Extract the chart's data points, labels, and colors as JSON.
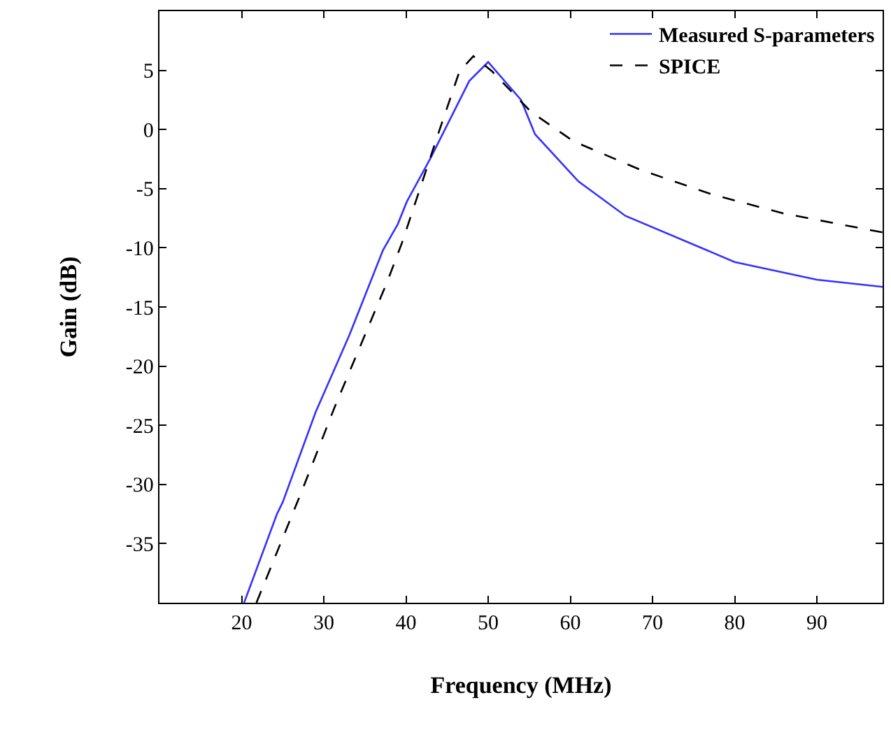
{
  "chart_data": {
    "type": "line",
    "xlabel": "Frequency (MHz)",
    "ylabel": "Gain (dB)",
    "xlim": [
      10,
      98
    ],
    "xticks": [
      20,
      30,
      40,
      50,
      60,
      70,
      80,
      90
    ],
    "ylim": [
      -40,
      10
    ],
    "yticks": [
      5,
      0,
      -5,
      -10,
      -15,
      -20,
      -25,
      -30,
      -35
    ],
    "legend": "top right",
    "marker": "none",
    "series": [
      {
        "name": "Measured S-parameters",
        "color": "#3333ff",
        "line_style": "solid",
        "x": [
          20.3,
          24.3,
          25,
          29,
          33.1,
          37.2,
          39,
          40.1,
          43,
          47.7,
          50,
          54,
          55.7,
          61,
          66.7,
          76.6,
          80,
          90,
          98
        ],
        "values": [
          -40,
          -32.5,
          -31.5,
          -23.9,
          -17.4,
          -10.2,
          -8,
          -6.1,
          -2.4,
          4.1,
          5.7,
          2.5,
          -0.4,
          -4.4,
          -7.3,
          -10.2,
          -11.2,
          -12.7,
          -13.3
        ]
      },
      {
        "name": "SPICE",
        "color": "#000000",
        "line_style": "dashed",
        "x": [
          21.8,
          27.3,
          31.3,
          37.7,
          39.5,
          44.1,
          46.5,
          48.2,
          50.5,
          55.2,
          60.4,
          68.5,
          77.3,
          86,
          98
        ],
        "values": [
          -40,
          -30.6,
          -23.5,
          -12.9,
          -9.6,
          0,
          4.9,
          6.2,
          4.9,
          1.5,
          -1.0,
          -3.4,
          -5.5,
          -7.1,
          -8.7
        ]
      }
    ]
  }
}
